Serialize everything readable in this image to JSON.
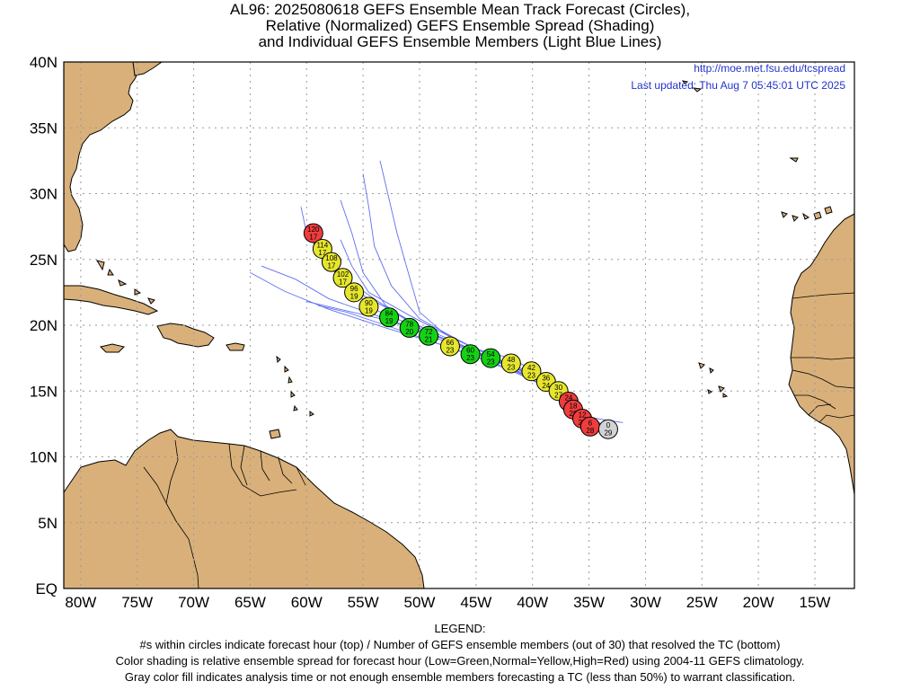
{
  "title": {
    "line1": "AL96: 2025080618 GEFS Ensemble Mean Track Forecast (Circles),",
    "line2": "Relative (Normalized) GEFS Ensemble Spread (Shading)",
    "line3": "and Individual GEFS Ensemble Members (Light Blue Lines)"
  },
  "url": "http://moe.met.fsu.edu/tcspread",
  "updated": "Last updated: Thu Aug 7 05:45:01 UTC 2025",
  "legend": {
    "heading": "LEGEND:",
    "line1": "#s within circles indicate forecast hour (top) / Number of GEFS ensemble members (out of 30) that resolved the TC (bottom)",
    "line2": "Color shading is relative ensemble spread for forecast hour (Low=Green,Normal=Yellow,High=Red) using 2004-11 GEFS climatology.",
    "line3": "Gray color fill indicates analysis time or not enough ensemble members forecasting a TC (less than 50%) to warrant classification."
  },
  "axes": {
    "lon_labels": [
      "80W",
      "75W",
      "70W",
      "65W",
      "60W",
      "55W",
      "50W",
      "45W",
      "40W",
      "35W",
      "30W",
      "25W",
      "20W",
      "15W"
    ],
    "lon_values": [
      -80,
      -75,
      -70,
      -65,
      -60,
      -55,
      -50,
      -45,
      -40,
      -35,
      -30,
      -25,
      -20,
      -15
    ],
    "lat_labels": [
      "EQ",
      "5N",
      "10N",
      "15N",
      "20N",
      "25N",
      "30N",
      "35N",
      "40N"
    ],
    "lat_values": [
      0,
      5,
      10,
      15,
      20,
      25,
      30,
      35,
      40
    ],
    "lon_range": [
      -81.5,
      -11.5
    ],
    "lat_range": [
      0,
      40
    ]
  },
  "colors": {
    "land": "#d9b07a",
    "member_lines": "#5f6ff2",
    "low_spread": "#14d214",
    "normal_spread": "#e6e62d",
    "high_spread": "#ef3d3d",
    "analysis": "#d3d3d3",
    "info_text": "#2233cc"
  },
  "track": [
    {
      "hour": "0",
      "members": "29",
      "lon": -33.3,
      "lat": 12.1,
      "spread": "gray"
    },
    {
      "hour": "6",
      "members": "28",
      "lon": -34.9,
      "lat": 12.3,
      "spread": "red"
    },
    {
      "hour": "12",
      "members": "28",
      "lon": -35.6,
      "lat": 12.9,
      "spread": "red"
    },
    {
      "hour": "18",
      "members": "28",
      "lon": -36.4,
      "lat": 13.6,
      "spread": "red"
    },
    {
      "hour": "24",
      "members": "28",
      "lon": -36.8,
      "lat": 14.2,
      "spread": "red"
    },
    {
      "hour": "30",
      "members": "27",
      "lon": -37.7,
      "lat": 15.0,
      "spread": "yellow"
    },
    {
      "hour": "36",
      "members": "24",
      "lon": -38.8,
      "lat": 15.7,
      "spread": "yellow"
    },
    {
      "hour": "42",
      "members": "23",
      "lon": -40.1,
      "lat": 16.5,
      "spread": "yellow"
    },
    {
      "hour": "48",
      "members": "23",
      "lon": -41.9,
      "lat": 17.1,
      "spread": "yellow"
    },
    {
      "hour": "54",
      "members": "23",
      "lon": -43.7,
      "lat": 17.5,
      "spread": "green"
    },
    {
      "hour": "60",
      "members": "23",
      "lon": -45.5,
      "lat": 17.8,
      "spread": "green"
    },
    {
      "hour": "66",
      "members": "23",
      "lon": -47.3,
      "lat": 18.4,
      "spread": "yellow"
    },
    {
      "hour": "72",
      "members": "21",
      "lon": -49.2,
      "lat": 19.2,
      "spread": "green"
    },
    {
      "hour": "78",
      "members": "20",
      "lon": -50.9,
      "lat": 19.8,
      "spread": "green"
    },
    {
      "hour": "84",
      "members": "19",
      "lon": -52.7,
      "lat": 20.6,
      "spread": "green"
    },
    {
      "hour": "90",
      "members": "19",
      "lon": -54.5,
      "lat": 21.4,
      "spread": "yellow"
    },
    {
      "hour": "96",
      "members": "19",
      "lon": -55.8,
      "lat": 22.5,
      "spread": "yellow"
    },
    {
      "hour": "102",
      "members": "17",
      "lon": -56.8,
      "lat": 23.6,
      "spread": "yellow"
    },
    {
      "hour": "108",
      "members": "17",
      "lon": -57.8,
      "lat": 24.8,
      "spread": "yellow"
    },
    {
      "hour": "114",
      "members": "17",
      "lon": -58.6,
      "lat": 25.8,
      "spread": "yellow"
    },
    {
      "hour": "120",
      "members": "17",
      "lon": -59.4,
      "lat": 27.0,
      "spread": "red"
    }
  ],
  "members": [
    [
      [
        -33.3,
        12.1
      ],
      [
        -36,
        13.6
      ],
      [
        -39,
        15.8
      ],
      [
        -43,
        17.3
      ],
      [
        -48,
        19.0
      ],
      [
        -52,
        20.9
      ],
      [
        -55.5,
        22.5
      ],
      [
        -58,
        24.5
      ],
      [
        -60,
        27.0
      ],
      [
        -60.5,
        29.0
      ]
    ],
    [
      [
        -33.3,
        12.1
      ],
      [
        -36,
        13.5
      ],
      [
        -39,
        15.6
      ],
      [
        -43,
        17.0
      ],
      [
        -48,
        18.5
      ],
      [
        -53,
        19.8
      ],
      [
        -58,
        21.2
      ],
      [
        -62,
        22.6
      ],
      [
        -65,
        24.0
      ]
    ],
    [
      [
        -33.3,
        12.1
      ],
      [
        -36,
        13.7
      ],
      [
        -40,
        16.2
      ],
      [
        -44,
        17.6
      ],
      [
        -49,
        19.4
      ],
      [
        -54,
        21.2
      ],
      [
        -57,
        23.5
      ],
      [
        -59,
        25.5
      ],
      [
        -60,
        27.5
      ]
    ],
    [
      [
        -33.3,
        12.1
      ],
      [
        -35.5,
        13.3
      ],
      [
        -38,
        15.0
      ],
      [
        -41,
        16.6
      ],
      [
        -45,
        18.0
      ],
      [
        -49.5,
        19.5
      ],
      [
        -53,
        21.5
      ],
      [
        -55,
        24.0
      ],
      [
        -56,
        27.0
      ],
      [
        -57,
        29.5
      ]
    ],
    [
      [
        -33.3,
        12.1
      ],
      [
        -36,
        13.8
      ],
      [
        -39.5,
        16.4
      ],
      [
        -42,
        17.5
      ],
      [
        -45,
        18.2
      ],
      [
        -48,
        19.5
      ],
      [
        -50,
        21.0
      ],
      [
        -51,
        24.0
      ],
      [
        -52,
        27.0
      ],
      [
        -53.5,
        32.5
      ]
    ],
    [
      [
        -33.3,
        12.1
      ],
      [
        -36,
        13.6
      ],
      [
        -39,
        15.5
      ],
      [
        -42,
        17.0
      ],
      [
        -46,
        18.6
      ],
      [
        -50,
        20.5
      ],
      [
        -52.5,
        23.0
      ],
      [
        -54,
        26.0
      ],
      [
        -54.5,
        29.0
      ],
      [
        -55,
        31.5
      ]
    ],
    [
      [
        -33.3,
        12.1
      ],
      [
        -36,
        13.5
      ],
      [
        -39,
        15.4
      ],
      [
        -42,
        16.8
      ],
      [
        -46,
        18.2
      ],
      [
        -50,
        19.5
      ],
      [
        -54,
        20.8
      ],
      [
        -58,
        22.0
      ],
      [
        -61,
        23.5
      ],
      [
        -64,
        24.5
      ]
    ],
    [
      [
        -33.3,
        12.1
      ],
      [
        -36,
        13.6
      ],
      [
        -39,
        15.6
      ],
      [
        -42.5,
        17.0
      ],
      [
        -47,
        18.8
      ],
      [
        -51,
        20.3
      ],
      [
        -54,
        22.0
      ],
      [
        -56.5,
        23.5
      ],
      [
        -58.5,
        25.0
      ]
    ],
    [
      [
        -32,
        12.6
      ],
      [
        -35,
        13.0
      ],
      [
        -37,
        14.5
      ],
      [
        -40,
        16.4
      ],
      [
        -44,
        17.6
      ],
      [
        -48,
        19.0
      ],
      [
        -52,
        20.2
      ],
      [
        -56,
        21.0
      ],
      [
        -60,
        21.8
      ]
    ],
    [
      [
        -33.3,
        12.1
      ],
      [
        -35.5,
        13.1
      ],
      [
        -38.5,
        15.2
      ],
      [
        -41.5,
        16.4
      ],
      [
        -45,
        17.6
      ],
      [
        -49,
        18.8
      ],
      [
        -53,
        20.0
      ],
      [
        -56.5,
        21.0
      ],
      [
        -59,
        21.5
      ]
    ],
    [
      [
        -33.3,
        12.1
      ],
      [
        -36,
        13.6
      ],
      [
        -39,
        15.7
      ],
      [
        -42.5,
        17.2
      ],
      [
        -47,
        19.0
      ],
      [
        -51,
        20.8
      ],
      [
        -54.5,
        22.5
      ],
      [
        -56,
        24.5
      ],
      [
        -57,
        26.5
      ]
    ]
  ],
  "islands": {
    "cape_verde": true,
    "canary": true
  }
}
